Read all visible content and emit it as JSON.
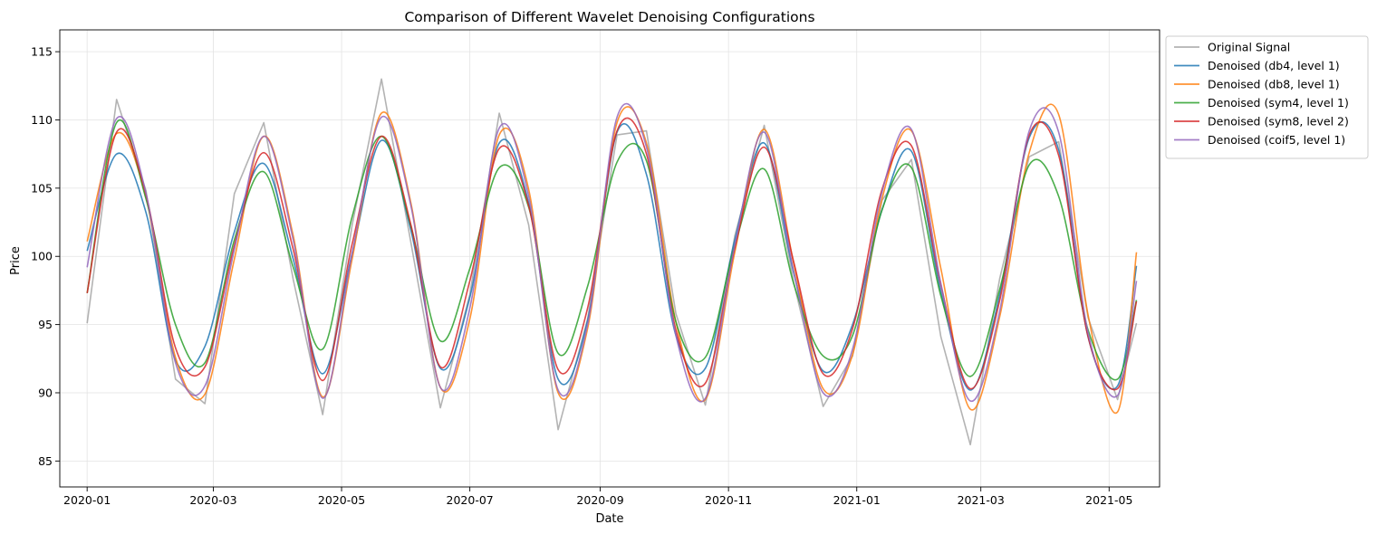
{
  "chart_data": {
    "type": "line",
    "title": "Comparison of Different Wavelet Denoising Configurations",
    "xlabel": "Date",
    "ylabel": "Price",
    "xlim": [
      "2019-12-19",
      "2021-05-25"
    ],
    "ylim": [
      83.1,
      116.6
    ],
    "x_ticks": [
      "2020-01-01",
      "2020-03-01",
      "2020-05-01",
      "2020-07-01",
      "2020-09-01",
      "2020-11-01",
      "2021-01-01",
      "2021-03-01",
      "2021-05-01"
    ],
    "x_tick_labels": [
      "2020-01",
      "2020-03",
      "2020-05",
      "2020-07",
      "2020-09",
      "2020-11",
      "2021-01",
      "2021-03",
      "2021-05"
    ],
    "y_ticks": [
      85,
      90,
      95,
      100,
      105,
      110,
      115
    ],
    "y_tick_labels": [
      "85",
      "90",
      "95",
      "100",
      "105",
      "110",
      "115"
    ],
    "grid": true,
    "legend_position": "outside-upper-right",
    "x_dates": [
      "2020-01-01",
      "2020-01-15",
      "2020-01-29",
      "2020-02-12",
      "2020-02-26",
      "2020-03-11",
      "2020-03-25",
      "2020-04-08",
      "2020-04-22",
      "2020-05-06",
      "2020-05-20",
      "2020-06-03",
      "2020-06-17",
      "2020-07-01",
      "2020-07-15",
      "2020-07-29",
      "2020-08-12",
      "2020-08-26",
      "2020-09-09",
      "2020-09-23",
      "2020-10-07",
      "2020-10-21",
      "2020-11-04",
      "2020-11-18",
      "2020-12-02",
      "2020-12-16",
      "2020-12-30",
      "2021-01-13",
      "2021-01-27",
      "2021-02-10",
      "2021-02-24",
      "2021-03-10",
      "2021-03-24",
      "2021-04-07",
      "2021-04-21",
      "2021-05-05",
      "2021-05-14"
    ],
    "series": [
      {
        "name": "Original Signal",
        "color": "#999999",
        "opacity": 0.75,
        "width": 1.6,
        "values": [
          95.1,
          111.5,
          104.8,
          91.0,
          89.2,
          104.6,
          109.8,
          98.3,
          88.4,
          102.3,
          113.0,
          101.0,
          88.9,
          97.2,
          110.5,
          102.3,
          87.3,
          95.4,
          108.9,
          109.2,
          95.8,
          89.1,
          101.5,
          109.6,
          98.1,
          89.0,
          92.7,
          104.1,
          107.1,
          94.1,
          86.2,
          98.4,
          107.3,
          108.4,
          95.5,
          89.5,
          95.1
        ]
      },
      {
        "name": "Denoised (db4, level 1)",
        "color": "#1f77b4",
        "opacity": 0.85,
        "width": 1.6,
        "values": [
          100.4,
          107.5,
          103.2,
          92.4,
          93.4,
          101.8,
          106.8,
          99.8,
          91.4,
          100.2,
          108.5,
          101.9,
          91.8,
          97.0,
          108.3,
          103.9,
          91.0,
          95.3,
          109.1,
          106.0,
          94.2,
          91.8,
          101.2,
          108.3,
          98.8,
          91.6,
          95.0,
          103.4,
          107.7,
          97.4,
          90.2,
          97.2,
          108.7,
          107.8,
          94.1,
          90.5,
          99.3
        ]
      },
      {
        "name": "Denoised (db8, level 1)",
        "color": "#ff7f0e",
        "opacity": 0.85,
        "width": 1.6,
        "values": [
          101.1,
          109.0,
          104.3,
          92.6,
          89.9,
          99.8,
          108.8,
          101.5,
          89.7,
          99.8,
          110.5,
          103.9,
          90.4,
          95.4,
          108.9,
          104.9,
          90.0,
          94.7,
          109.8,
          108.3,
          95.2,
          89.5,
          100.3,
          109.3,
          99.5,
          90.3,
          92.8,
          104.2,
          109.2,
          99.1,
          88.8,
          95.6,
          107.6,
          110.4,
          95.7,
          88.6,
          100.3
        ]
      },
      {
        "name": "Denoised (sym4, level 1)",
        "color": "#2ca02c",
        "opacity": 0.85,
        "width": 1.6,
        "values": [
          97.3,
          109.8,
          104.2,
          95.0,
          92.2,
          101.2,
          106.2,
          99.2,
          93.2,
          102.9,
          108.8,
          102.2,
          93.8,
          99.1,
          106.5,
          103.6,
          92.9,
          97.8,
          106.9,
          107.0,
          95.2,
          92.6,
          100.8,
          106.4,
          98.0,
          92.7,
          94.2,
          103.4,
          106.5,
          97.1,
          91.2,
          97.6,
          106.7,
          104.4,
          94.6,
          91.0,
          96.8
        ]
      },
      {
        "name": "Denoised (sym8, level 2)",
        "color": "#d62728",
        "opacity": 0.85,
        "width": 1.6,
        "values": [
          97.3,
          109.1,
          104.5,
          93.3,
          91.9,
          100.8,
          107.6,
          100.5,
          90.9,
          100.9,
          108.8,
          102.3,
          91.9,
          98.2,
          107.9,
          103.7,
          91.7,
          96.2,
          109.2,
          107.5,
          94.6,
          90.7,
          100.6,
          108.0,
          99.6,
          91.4,
          94.7,
          104.9,
          108.1,
          97.9,
          90.3,
          96.8,
          108.9,
          107.4,
          94.1,
          90.3,
          96.7
        ]
      },
      {
        "name": "Denoised (coif5, level 1)",
        "color": "#9467bd",
        "opacity": 0.85,
        "width": 1.6,
        "values": [
          99.2,
          110.1,
          104.6,
          92.2,
          90.5,
          100.5,
          108.8,
          101.2,
          89.6,
          100.2,
          110.2,
          103.7,
          90.4,
          96.2,
          109.4,
          104.4,
          90.2,
          95.0,
          110.2,
          108.0,
          94.2,
          89.6,
          100.8,
          109.1,
          98.9,
          90.0,
          93.2,
          104.7,
          109.3,
          98.0,
          89.4,
          96.0,
          109.2,
          109.1,
          94.4,
          89.8,
          98.2
        ]
      }
    ]
  }
}
